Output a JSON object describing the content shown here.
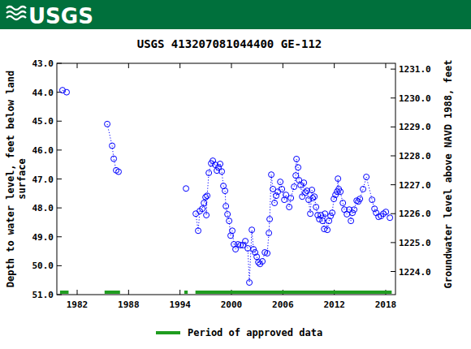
{
  "chart_data": {
    "type": "scatter",
    "logo": "USGS",
    "title": "USGS 413207081044400 GE-112",
    "y_label": [
      "Depth to water level, feet below land",
      "surface"
    ],
    "y2_label": "Groundwater level above NAVD 1988, feet",
    "xlim": [
      1979.63,
      2019.14
    ],
    "xticks": [
      1982,
      1988,
      1994,
      2000,
      2006,
      2012,
      2018
    ],
    "ylim": [
      51,
      43
    ],
    "yticks": [
      {
        "value": 43,
        "label": "43.0"
      },
      {
        "value": 44,
        "label": "44.0"
      },
      {
        "value": 45,
        "label": "45.0"
      },
      {
        "value": 46,
        "label": "46.0"
      },
      {
        "value": 47,
        "label": "47.0"
      },
      {
        "value": 48,
        "label": "48.0"
      },
      {
        "value": 49,
        "label": "49.0"
      },
      {
        "value": 50,
        "label": "50.0"
      },
      {
        "value": 51,
        "label": "51.0"
      }
    ],
    "y2lim": [
      1223.2,
      1231.2
    ],
    "y2ticks": [
      {
        "value": 1224,
        "label": "1224.0"
      },
      {
        "value": 1225,
        "label": "1225.0"
      },
      {
        "value": 1226,
        "label": "1226.0"
      },
      {
        "value": 1227,
        "label": "1227.0"
      },
      {
        "value": 1228,
        "label": "1228.0"
      },
      {
        "value": 1229,
        "label": "1229.0"
      },
      {
        "value": 1230,
        "label": "1230.0"
      },
      {
        "value": 1231,
        "label": "1231.0"
      }
    ],
    "series": [
      {
        "color": "#0000ff",
        "marker": "open-circle",
        "line_style": "dotted",
        "x": [
          1980.29,
          1980.77,
          1983.0,
          1985.51,
          1986.08,
          1986.27,
          1986.55,
          1986.83,
          1990.0,
          1994.7,
          1995.3,
          1995.84,
          1996.12,
          1996.31,
          1996.6,
          1996.79,
          1996.98,
          1997.07,
          1997.17,
          1997.36,
          1997.64,
          1997.83,
          1998.11,
          1998.3,
          1998.49,
          1998.68,
          1998.87,
          1999.06,
          1999.25,
          1999.35,
          1999.54,
          1999.73,
          1999.91,
          2000.1,
          2000.29,
          2000.48,
          2000.77,
          2001.05,
          2001.34,
          2001.62,
          2001.91,
          2002.09,
          2002.38,
          2002.57,
          2002.76,
          2002.95,
          2003.14,
          2003.33,
          2003.61,
          2003.9,
          2004.18,
          2004.37,
          2004.46,
          2004.65,
          2004.84,
          2005.03,
          2005.22,
          2005.41,
          2005.7,
          2005.89,
          2006.17,
          2006.36,
          2006.74,
          2006.93,
          2007.31,
          2007.5,
          2007.59,
          2007.78,
          2007.88,
          2008.07,
          2008.26,
          2008.45,
          2008.64,
          2008.82,
          2009.01,
          2009.2,
          2009.39,
          2009.49,
          2009.68,
          2009.87,
          2010.06,
          2010.25,
          2010.44,
          2010.63,
          2010.82,
          2010.91,
          2011.19,
          2011.38,
          2011.57,
          2011.76,
          2011.95,
          2012.14,
          2012.33,
          2012.43,
          2012.52,
          2012.71,
          2013.0,
          2013.18,
          2013.47,
          2013.75,
          2013.94,
          2014.13,
          2014.32,
          2014.61,
          2014.8,
          2014.99,
          2015.36,
          2015.74,
          2016.41,
          2016.69,
          2016.88,
          2017.17,
          2017.45,
          2017.73,
          2018.02,
          2018.49
        ],
        "values": [
          43.93,
          44.0,
          null,
          45.1,
          45.85,
          46.3,
          46.7,
          46.75,
          null,
          47.33,
          null,
          48.2,
          48.79,
          48.11,
          48.03,
          47.83,
          47.63,
          48.25,
          47.58,
          46.79,
          46.46,
          46.37,
          46.51,
          46.71,
          46.6,
          46.48,
          46.74,
          47.24,
          47.41,
          47.94,
          48.22,
          48.45,
          48.96,
          48.79,
          49.26,
          49.43,
          49.26,
          49.29,
          49.29,
          49.15,
          49.4,
          50.58,
          48.76,
          49.43,
          49.54,
          49.69,
          49.88,
          49.94,
          49.85,
          49.54,
          49.57,
          48.87,
          48.39,
          46.85,
          47.35,
          47.83,
          47.58,
          47.44,
          47.1,
          47.35,
          47.72,
          47.55,
          47.97,
          47.66,
          47.27,
          46.88,
          46.31,
          46.6,
          47.04,
          47.21,
          47.61,
          47.13,
          47.47,
          47.41,
          47.72,
          48.2,
          47.38,
          47.66,
          47.61,
          47.97,
          48.25,
          48.39,
          48.25,
          48.45,
          48.73,
          48.2,
          48.76,
          48.45,
          48.28,
          48.17,
          47.69,
          47.55,
          47.44,
          46.99,
          47.35,
          47.44,
          47.83,
          48.06,
          48.22,
          48.06,
          48.45,
          48.17,
          48.06,
          47.75,
          47.78,
          47.69,
          47.35,
          46.93,
          47.72,
          48.03,
          48.17,
          48.31,
          48.28,
          48.2,
          48.14,
          48.34
        ]
      }
    ],
    "approved_periods": {
      "name": "Period of approved data",
      "color": "#1f9d1f",
      "ranges": [
        [
          1980.0,
          1981.0
        ],
        [
          1985.2,
          1987.0
        ],
        [
          1994.5,
          1994.9
        ],
        [
          1995.8,
          2018.7
        ]
      ]
    }
  }
}
